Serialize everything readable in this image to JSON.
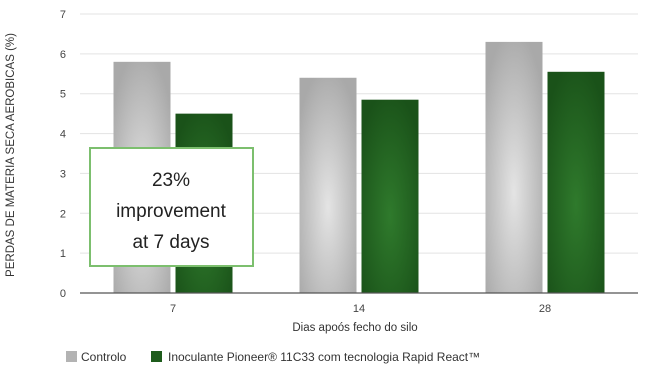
{
  "chart_data": {
    "type": "bar",
    "categories": [
      "7",
      "14",
      "28"
    ],
    "series": [
      {
        "name": "Controlo",
        "color": "#b3b3b3",
        "values": [
          5.8,
          5.4,
          6.3
        ]
      },
      {
        "name": "Inoculante Pioneer® 11C33 com tecnologia Rapid React™",
        "color": "#1e5c1c",
        "values": [
          4.5,
          4.85,
          5.55
        ]
      }
    ],
    "xlabel": "Dias apoós fecho do silo",
    "ylabel": "PERDAS DE MATERIA SECA AEROBICAS (%)",
    "ylim": [
      0,
      7
    ],
    "yticks": [
      "0",
      "1",
      "2",
      "3",
      "4",
      "5",
      "6",
      "7"
    ],
    "grid": true,
    "legend_position": "bottom-left",
    "callout": {
      "lines": [
        "23%",
        "improvement",
        "at 7 days"
      ],
      "border_color": "#7cbf6e"
    }
  }
}
